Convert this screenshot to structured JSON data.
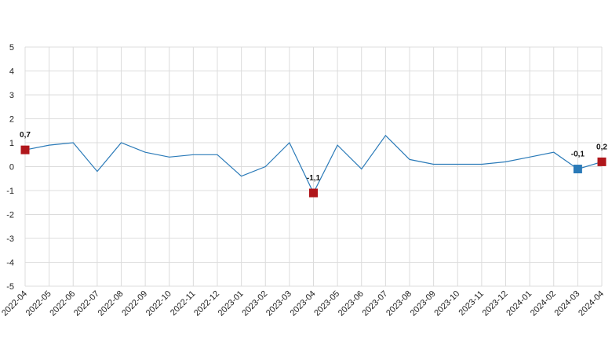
{
  "chart_data": {
    "type": "line",
    "title": "",
    "xlabel": "",
    "ylabel": "",
    "ylim": [
      -5,
      5
    ],
    "yticks": [
      5,
      4,
      3,
      2,
      1,
      0,
      -1,
      -2,
      -3,
      -4,
      -5
    ],
    "grid": true,
    "legend": "none",
    "categories": [
      "2022-04",
      "2022-05",
      "2022-06",
      "2022-07",
      "2022-08",
      "2022-09",
      "2022-10",
      "2022-11",
      "2022-12",
      "2023-01",
      "2023-02",
      "2023-03",
      "2023-04",
      "2023-05",
      "2023-06",
      "2023-07",
      "2023-08",
      "2023-09",
      "2023-10",
      "2023-11",
      "2023-12",
      "2024-01",
      "2024-02",
      "2024-03",
      "2024-04"
    ],
    "series": [
      {
        "color": "#2a7ab8",
        "values": [
          0.7,
          0.9,
          1.0,
          -0.2,
          1.0,
          0.6,
          0.4,
          0.5,
          0.5,
          -0.4,
          0.0,
          1.0,
          -1.1,
          0.9,
          -0.1,
          1.3,
          0.3,
          0.1,
          0.1,
          0.1,
          0.2,
          0.4,
          0.6,
          -0.1,
          0.2
        ]
      }
    ],
    "markers": [
      {
        "index": 0,
        "label": "0,7",
        "color": "#b0161b"
      },
      {
        "index": 12,
        "label": "-1,1",
        "color": "#b0161b"
      },
      {
        "index": 23,
        "label": "-0,1",
        "color": "#2a7ab8"
      },
      {
        "index": 24,
        "label": "0,2",
        "color": "#b0161b"
      }
    ]
  }
}
